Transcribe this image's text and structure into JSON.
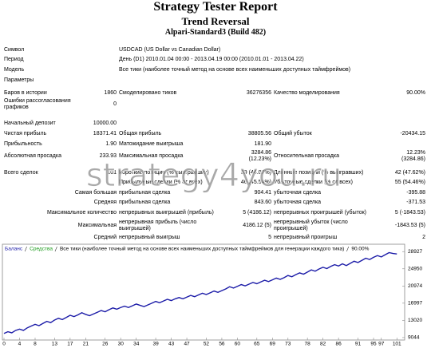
{
  "header": {
    "title": "Strategy Tester Report",
    "subtitle": "Trend Reversal",
    "account": "Alpari-Standard3 (Build 482)"
  },
  "info": [
    [
      "Символ",
      "USDCAD (US Dollar vs Canadian Dollar)"
    ],
    [
      "Период",
      "День (D1) 2010.01.04 00:00 - 2013.04.19 00:00 (2010.01.01 - 2013.04.22)"
    ],
    [
      "Модель",
      "Все тики (наиболее точный метод на основе всех наименьших доступных таймфреймов)"
    ],
    [
      "Параметры"
    ]
  ],
  "stats": [
    [
      "Баров в истории",
      "1860",
      "Смоделировано тиков",
      "36276356",
      "Качество моделирования",
      "90.00%"
    ],
    [
      "Ошибки рассогласования графиков",
      "0"
    ],
    [
      "Начальный депозит",
      "10000.00"
    ],
    [
      "Чистая прибыль",
      "18371.41",
      "Общая прибыль",
      "38805.56",
      "Общий убыток",
      "-20434.15"
    ],
    [
      "Прибыльность",
      "1.90",
      "Матожидание выигрыша",
      "181.90"
    ],
    [
      "Абсолютная просадка",
      "233.93",
      "Максимальная просадка",
      "3284.86 (12.23%)",
      "Относительная просадка",
      "12.23% (3284.86)"
    ],
    [
      "Всего сделок",
      "101",
      "Короткие позиции (% выигравших)",
      "59 (44.07%)",
      "Длинные позиции (% выигравших)",
      "42 (47.62%)"
    ],
    [
      "Прибыльные сделки (% от всех)",
      "46 (45.54%)",
      "Убыточные сделки (% от всех)",
      "55 (54.46%)"
    ],
    [
      "Самая большая",
      "прибыльная сделка",
      "904.41",
      "убыточная сделка",
      "-395.88"
    ],
    [
      "Средняя",
      "прибыльная сделка",
      "843.60",
      "убыточная сделка",
      "-371.53"
    ],
    [
      "Максимальное количество",
      "непрерывных выигрышей (прибыль)",
      "5 (4186.12)",
      "непрерывных проигрышей (убыток)",
      "5 (-1843.53)"
    ],
    [
      "Максимальная",
      "непрерывная прибыль (число выигрышей)",
      "4186.12 (5)",
      "непрерывный убыток (число проигрышей)",
      "-1843.53 (5)"
    ],
    [
      "Средний",
      "непрерывный выигрыш",
      "5",
      "непрерывный проигрыш",
      "2"
    ]
  ],
  "watermark": "strategy4you.ru",
  "chart_data": {
    "type": "line",
    "legend": {
      "equity": "Средства",
      "model": "Все тики (наиболее точный метод на основе всех наименьших доступных таймфреймов для генерации каждого тика)",
      "quality": "90.00%",
      "equity_color": "#1a9a1a"
    },
    "x": [
      0,
      1,
      2,
      3,
      4,
      5,
      6,
      7,
      8,
      9,
      10,
      11,
      12,
      13,
      14,
      15,
      16,
      17,
      18,
      19,
      20,
      21,
      22,
      23,
      24,
      25,
      26,
      27,
      28,
      29,
      30,
      31,
      32,
      33,
      34,
      35,
      36,
      37,
      38,
      39,
      40,
      41,
      42,
      43,
      44,
      45,
      46,
      47,
      48,
      49,
      50,
      51,
      52,
      53,
      54,
      55,
      56,
      57,
      58,
      59,
      60,
      61,
      62,
      63,
      64,
      65,
      66,
      67,
      68,
      69,
      70,
      71,
      72,
      73,
      74,
      75,
      76,
      77,
      78,
      79,
      80,
      81,
      82,
      83,
      84,
      85,
      86,
      87,
      88,
      89,
      90,
      91,
      92,
      93,
      94,
      95,
      96,
      97,
      98,
      99,
      100,
      101
    ],
    "series": [
      {
        "name": "Баланс",
        "color": "#1c1ca8",
        "values": [
          10000,
          10400,
          10150,
          10700,
          11000,
          10700,
          11300,
          11700,
          12100,
          11800,
          12300,
          12800,
          12500,
          13100,
          13500,
          13200,
          13700,
          14200,
          13900,
          14300,
          14800,
          14400,
          14100,
          14500,
          14900,
          15300,
          15000,
          15500,
          15900,
          15600,
          16000,
          16300,
          16000,
          16400,
          16800,
          16500,
          16200,
          16600,
          17000,
          17400,
          17100,
          17500,
          17900,
          17600,
          18000,
          18300,
          18000,
          18400,
          18800,
          18500,
          18900,
          19300,
          19000,
          19400,
          19800,
          19500,
          19900,
          20300,
          20800,
          20500,
          20900,
          21300,
          21000,
          21400,
          21800,
          21500,
          21900,
          22300,
          22000,
          22400,
          22800,
          22500,
          22900,
          23400,
          23100,
          23600,
          24000,
          23700,
          24200,
          24700,
          24400,
          24900,
          25300,
          25000,
          25500,
          25900,
          25600,
          26100,
          25700,
          26200,
          26700,
          26400,
          26900,
          27400,
          27100,
          27600,
          28000,
          27700,
          28200,
          28700,
          28500,
          28371.41
        ]
      }
    ],
    "xlim": [
      0,
      103
    ],
    "ylim": [
      8477,
      30630
    ],
    "xticks": [
      0,
      4,
      8,
      13,
      17,
      21,
      26,
      30,
      34,
      39,
      43,
      47,
      52,
      56,
      60,
      65,
      69,
      73,
      78,
      82,
      86,
      91,
      95,
      97,
      101
    ],
    "yticks": [
      9044,
      13020,
      16997,
      20974,
      24950,
      28927
    ]
  }
}
